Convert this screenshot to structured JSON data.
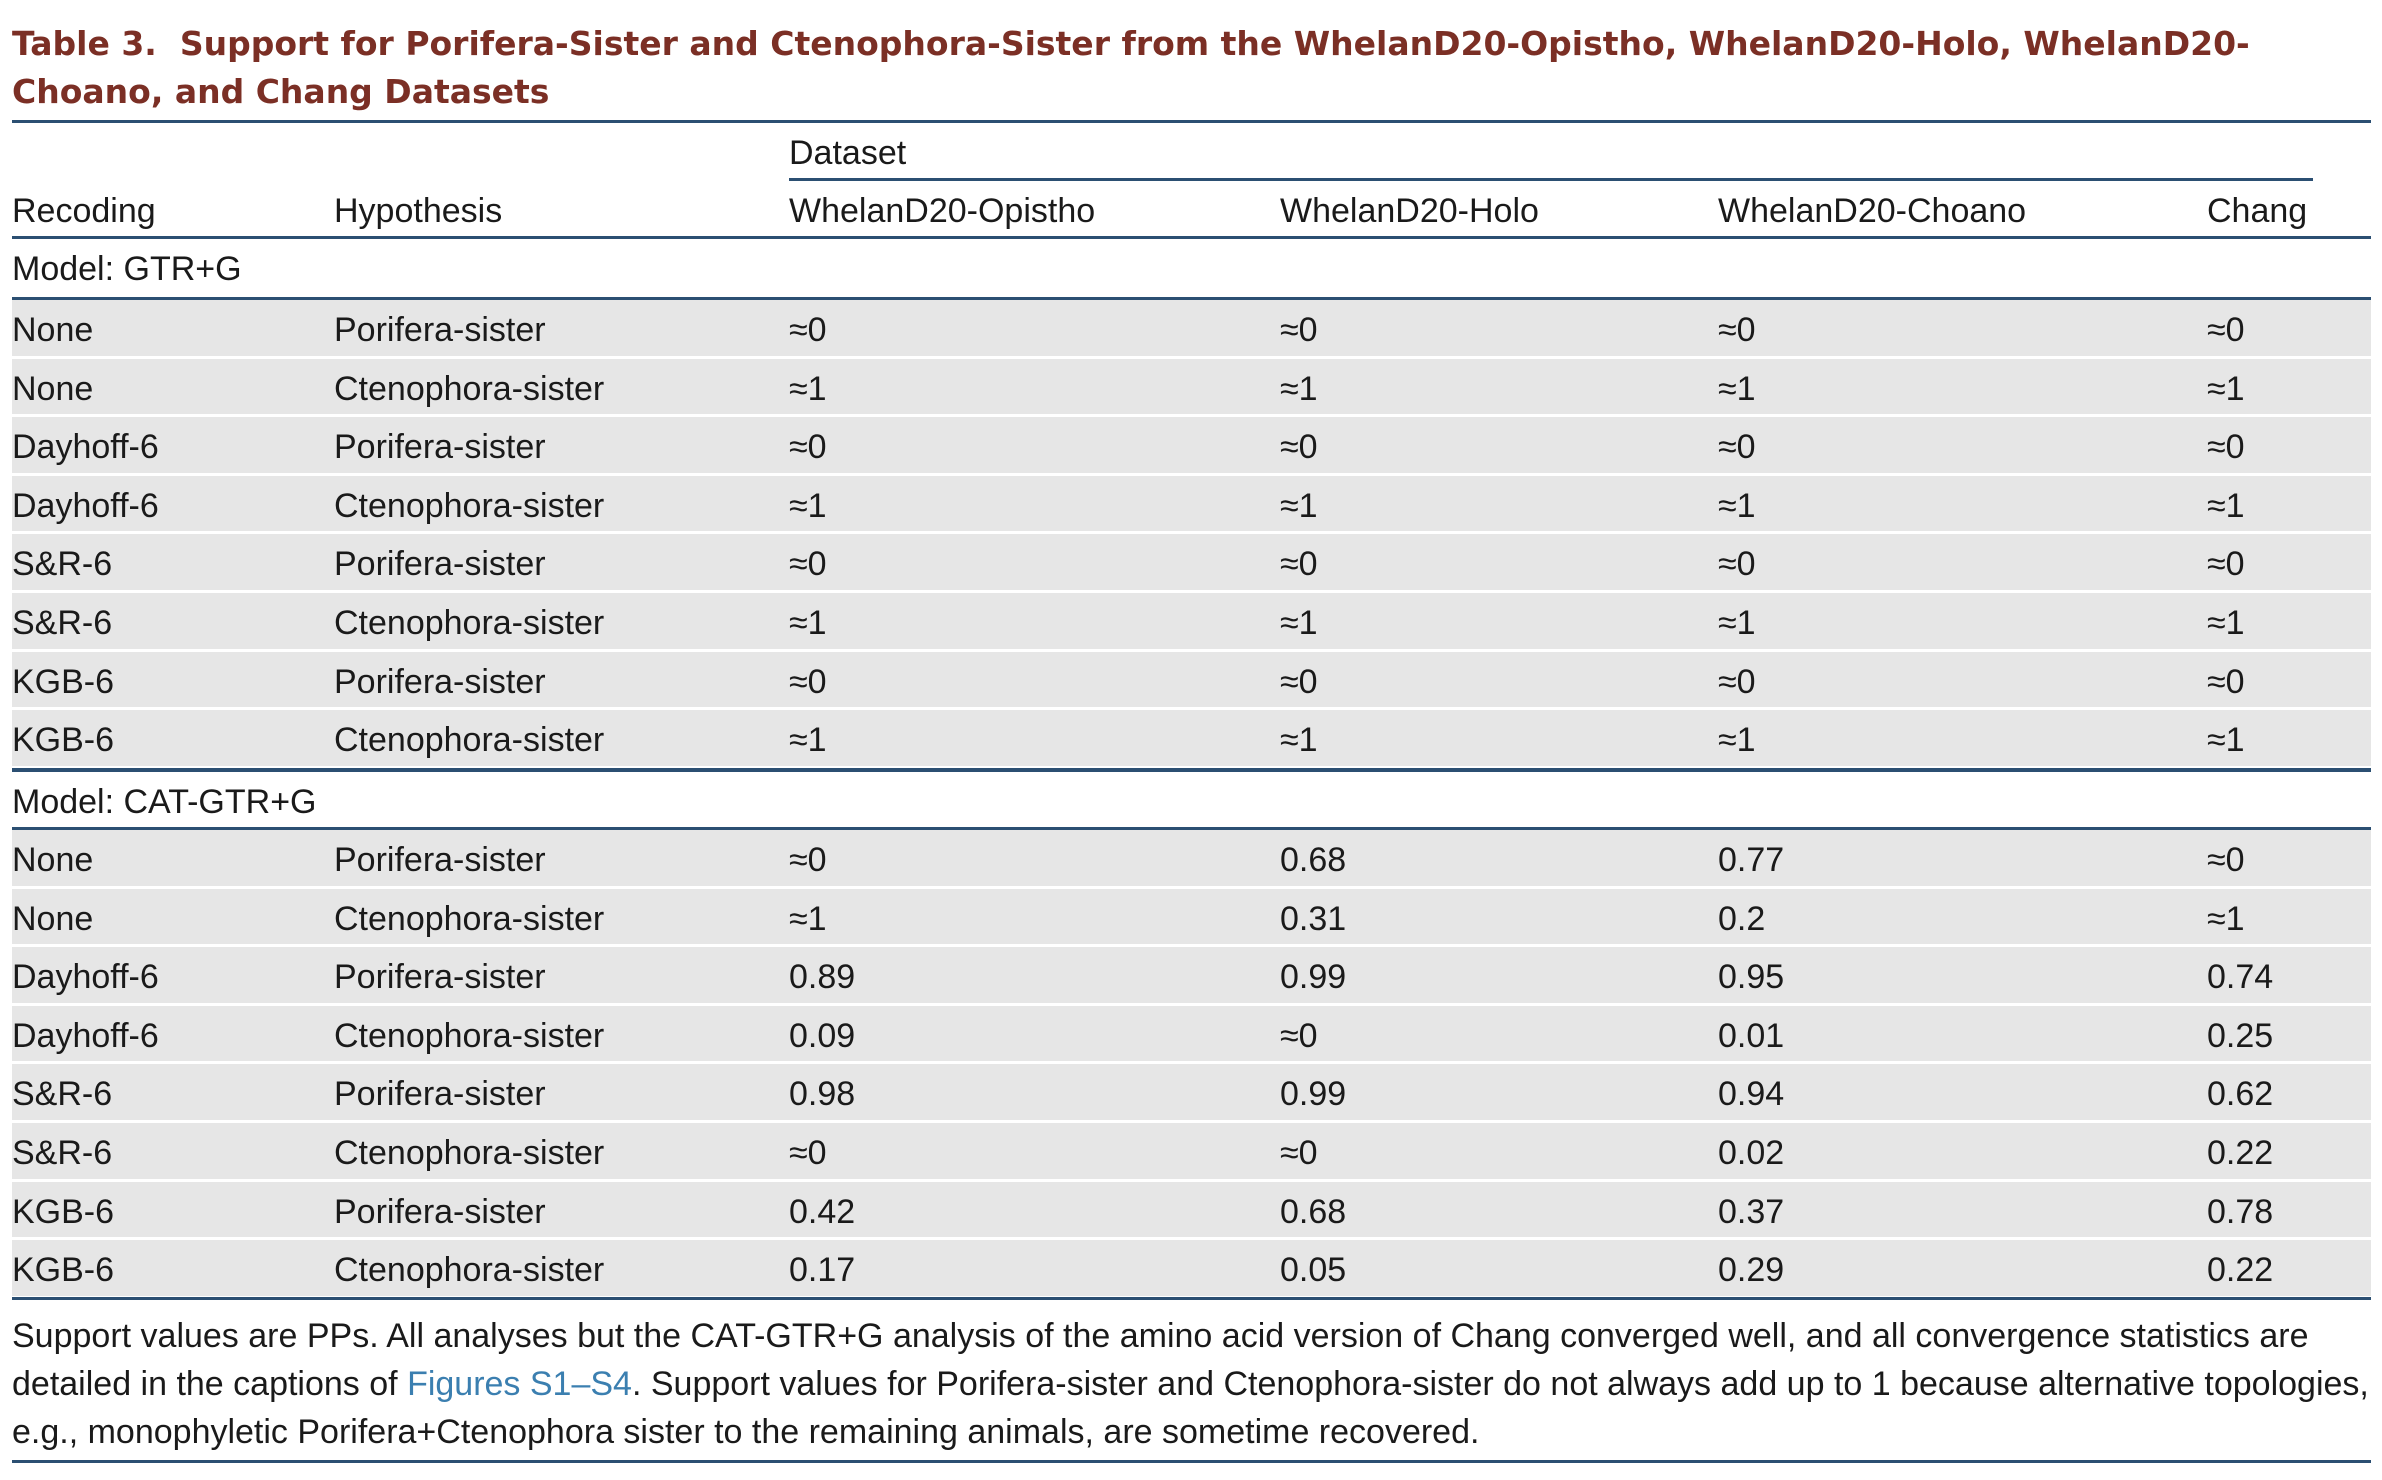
{
  "caption": {
    "label": "Table 3.",
    "title": "Support for Porifera-Sister and Ctenophora-Sister from the WhelanD20-Opistho, WhelanD20-Holo, WhelanD20-Choano, and Chang Datasets"
  },
  "header": {
    "recoding": "Recoding",
    "hypothesis": "Hypothesis",
    "dataset_group": "Dataset",
    "datasets": [
      "WhelanD20-Opistho",
      "WhelanD20-Holo",
      "WhelanD20-Choano",
      "Chang"
    ]
  },
  "sections": [
    {
      "model_label": "Model: GTR+G",
      "rows": [
        {
          "recoding": "None",
          "hypothesis": "Porifera-sister",
          "values": [
            "≈0",
            "≈0",
            "≈0",
            "≈0"
          ]
        },
        {
          "recoding": "None",
          "hypothesis": "Ctenophora-sister",
          "values": [
            "≈1",
            "≈1",
            "≈1",
            "≈1"
          ]
        },
        {
          "recoding": "Dayhoff-6",
          "hypothesis": "Porifera-sister",
          "values": [
            "≈0",
            "≈0",
            "≈0",
            "≈0"
          ]
        },
        {
          "recoding": "Dayhoff-6",
          "hypothesis": "Ctenophora-sister",
          "values": [
            "≈1",
            "≈1",
            "≈1",
            "≈1"
          ]
        },
        {
          "recoding": "S&R-6",
          "hypothesis": "Porifera-sister",
          "values": [
            "≈0",
            "≈0",
            "≈0",
            "≈0"
          ]
        },
        {
          "recoding": "S&R-6",
          "hypothesis": "Ctenophora-sister",
          "values": [
            "≈1",
            "≈1",
            "≈1",
            "≈1"
          ]
        },
        {
          "recoding": "KGB-6",
          "hypothesis": "Porifera-sister",
          "values": [
            "≈0",
            "≈0",
            "≈0",
            "≈0"
          ]
        },
        {
          "recoding": "KGB-6",
          "hypothesis": "Ctenophora-sister",
          "values": [
            "≈1",
            "≈1",
            "≈1",
            "≈1"
          ]
        }
      ]
    },
    {
      "model_label": "Model: CAT-GTR+G",
      "rows": [
        {
          "recoding": "None",
          "hypothesis": "Porifera-sister",
          "values": [
            "≈0",
            "0.68",
            "0.77",
            "≈0"
          ]
        },
        {
          "recoding": "None",
          "hypothesis": "Ctenophora-sister",
          "values": [
            "≈1",
            "0.31",
            "0.2",
            "≈1"
          ]
        },
        {
          "recoding": "Dayhoff-6",
          "hypothesis": "Porifera-sister",
          "values": [
            "0.89",
            "0.99",
            "0.95",
            "0.74"
          ]
        },
        {
          "recoding": "Dayhoff-6",
          "hypothesis": "Ctenophora-sister",
          "values": [
            "0.09",
            "≈0",
            "0.01",
            "0.25"
          ]
        },
        {
          "recoding": "S&R-6",
          "hypothesis": "Porifera-sister",
          "values": [
            "0.98",
            "0.99",
            "0.94",
            "0.62"
          ]
        },
        {
          "recoding": "S&R-6",
          "hypothesis": "Ctenophora-sister",
          "values": [
            "≈0",
            "≈0",
            "0.02",
            "0.22"
          ]
        },
        {
          "recoding": "KGB-6",
          "hypothesis": "Porifera-sister",
          "values": [
            "0.42",
            "0.68",
            "0.37",
            "0.78"
          ]
        },
        {
          "recoding": "KGB-6",
          "hypothesis": "Ctenophora-sister",
          "values": [
            "0.17",
            "0.05",
            "0.29",
            "0.22"
          ]
        }
      ]
    }
  ],
  "footnote": {
    "part1": "Support values are PPs. All analyses but the CAT-GTR+G analysis of the amino acid version of Chang converged well, and all convergence statistics are detailed in the captions of ",
    "link": "Figures S1–S4",
    "part2": ". Support values for Porifera-sister and Ctenophora-sister do not always add up to 1 because alternative topologies, e.g., monophyletic Porifera+Ctenophora sister to the remaining animals, are sometime recovered."
  },
  "colors": {
    "caption": "#7b2f25",
    "rule": "#2b4f72",
    "row_shade": "#e6e6e6",
    "link": "#3b7fb0"
  }
}
